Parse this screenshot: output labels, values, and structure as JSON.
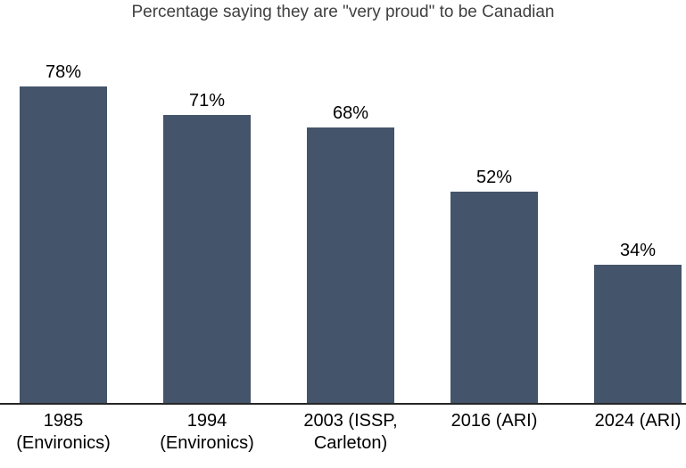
{
  "chart_data": {
    "type": "bar",
    "title": "Percentage saying they are \"very proud\" to be Canadian",
    "categories": [
      "1985\n(Environics)",
      "1994\n(Environics)",
      "2003 (ISSP,\nCarleton)",
      "2016 (ARI)",
      "2024 (ARI)"
    ],
    "values": [
      78,
      71,
      68,
      52,
      34
    ],
    "value_labels": [
      "78%",
      "71%",
      "68%",
      "52%",
      "34%"
    ],
    "xlabel": "",
    "ylabel": "",
    "ylim": [
      0,
      100
    ],
    "grid": false,
    "legend": "none",
    "colors": {
      "bar": "#44546A",
      "axis_line": "#262626",
      "title_text": "#404040",
      "label_text": "#000000",
      "background": "#ffffff"
    }
  }
}
